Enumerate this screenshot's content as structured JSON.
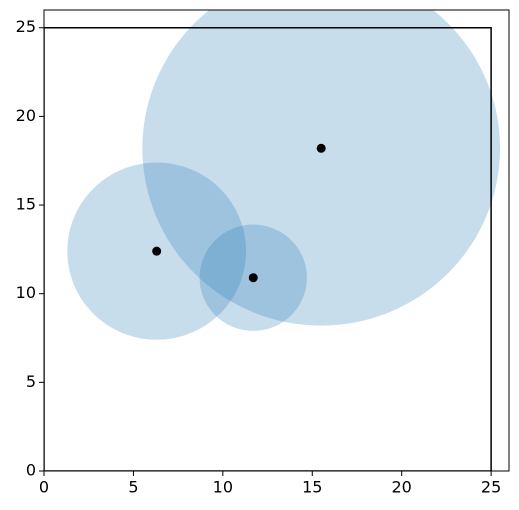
{
  "chart_data": {
    "type": "scatter",
    "x": [
      15.5,
      6.3,
      11.7
    ],
    "values": [
      18.2,
      12.4,
      10.9
    ],
    "radii": [
      10,
      5,
      3
    ],
    "color": "#1f77b4",
    "point_color": "#000000",
    "box": {
      "x": [
        0,
        25
      ],
      "y": [
        0,
        25
      ]
    },
    "xlim": [
      0,
      26
    ],
    "ylim": [
      0,
      26
    ],
    "xticks": [
      0,
      5,
      10,
      15,
      20,
      25
    ],
    "yticks": [
      0,
      5,
      10,
      15,
      20,
      25
    ],
    "grid": false
  }
}
